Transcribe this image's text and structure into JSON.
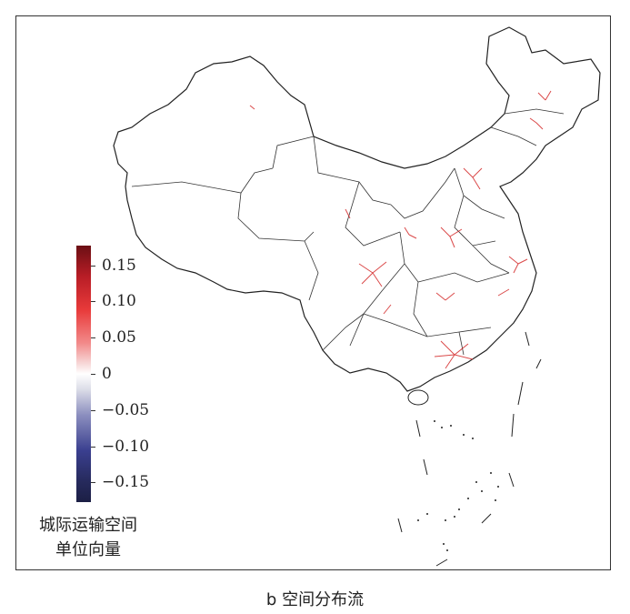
{
  "legend": {
    "title_line1": "城际运输空间",
    "title_line2": "单位向量",
    "ticks": [
      "0.15",
      "0.10",
      "0.05",
      "0",
      "−0.05",
      "−0.10",
      "−0.15"
    ],
    "colors": {
      "max": "#6b0f14",
      "high": "#e83a3a",
      "zero": "#ffffff",
      "low": "#3a3f8f",
      "min": "#1c1f45"
    }
  },
  "caption": "b 空间分布流",
  "map": {
    "boundary_color": "#222222",
    "flow_color": "#d42a2a"
  }
}
